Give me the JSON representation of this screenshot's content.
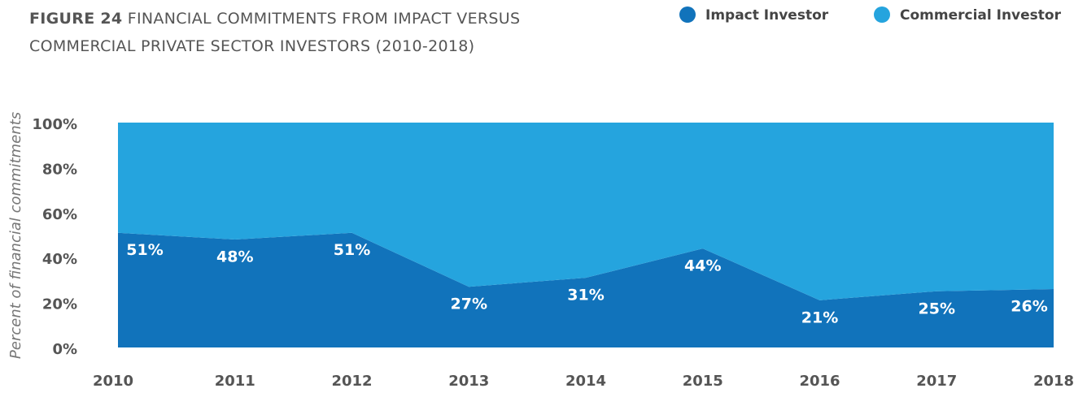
{
  "chart_data": {
    "type": "stacked_area",
    "figure_label": "FIGURE 24",
    "title": "FINANCIAL COMMITMENTS FROM IMPACT VERSUS COMMERCIAL PRIVATE SECTOR INVESTORS (2010-2018)",
    "y_axis_label": "Percent of financial commitments",
    "categories": [
      "2010",
      "2011",
      "2012",
      "2013",
      "2014",
      "2015",
      "2016",
      "2017",
      "2018"
    ],
    "series": [
      {
        "name": "Impact Investor",
        "color": "#1173bb",
        "values": [
          51,
          48,
          51,
          27,
          31,
          44,
          21,
          25,
          26
        ],
        "value_labels": [
          "51%",
          "48%",
          "51%",
          "27%",
          "31%",
          "44%",
          "21%",
          "25%",
          "26%"
        ]
      },
      {
        "name": "Commercial Investor",
        "color": "#25a4de",
        "values": [
          49,
          52,
          49,
          73,
          69,
          56,
          79,
          75,
          74
        ]
      }
    ],
    "ylim": [
      0,
      100
    ],
    "yticks": [
      {
        "value": 0,
        "label": "0%"
      },
      {
        "value": 20,
        "label": "20%"
      },
      {
        "value": 40,
        "label": "40%"
      },
      {
        "value": 60,
        "label": "60%"
      },
      {
        "value": 80,
        "label": "80%"
      },
      {
        "value": 100,
        "label": "100%"
      }
    ],
    "legend": "top-right"
  }
}
